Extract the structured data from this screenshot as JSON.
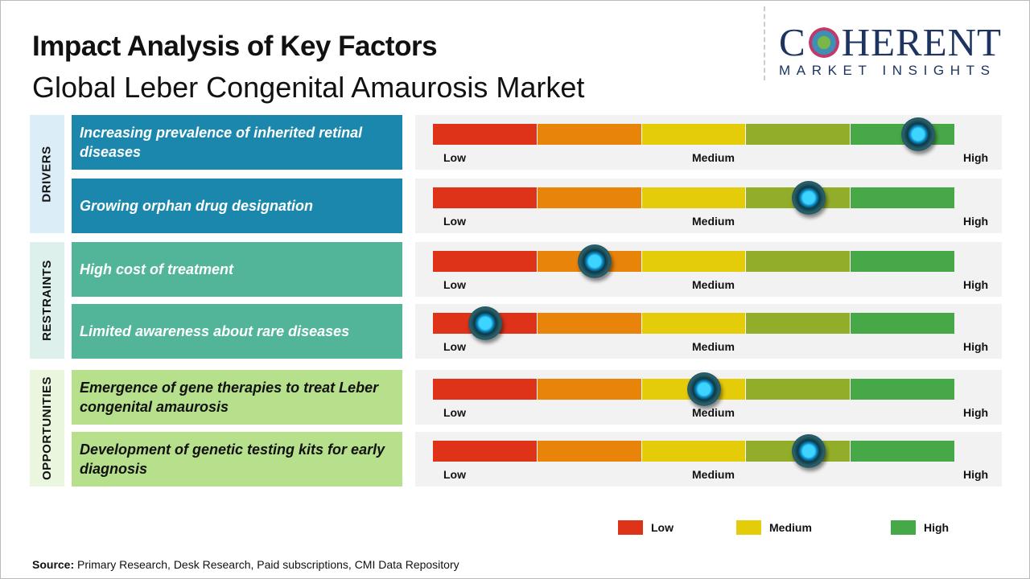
{
  "header": {
    "title": "Impact Analysis of Key Factors",
    "subtitle": "Global Leber Congenital Amaurosis Market"
  },
  "logo": {
    "main_left": "C",
    "main_right": "HERENT",
    "sub": "MARKET INSIGHTS"
  },
  "colors": {
    "drivers_bg": "#dbeef8",
    "drivers_box": "#1b87ad",
    "restraints_bg": "#ddf0ec",
    "restraints_box": "#52b59a",
    "opportunities_bg": "#eaf6de",
    "opportunities_box": "#b6e08c",
    "scale": [
      "#de3219",
      "#e8840a",
      "#e5cc0a",
      "#92ad2a",
      "#46a846"
    ]
  },
  "categories": [
    {
      "label": "DRIVERS"
    },
    {
      "label": "RESTRAINTS"
    },
    {
      "label": "OPPORTUNITIES"
    }
  ],
  "scale_labels": {
    "low": "Low",
    "medium": "Medium",
    "high": "High"
  },
  "chart_data": {
    "type": "gauge",
    "scale": [
      "Low",
      "Medium",
      "High"
    ],
    "range": [
      0,
      1
    ],
    "factors": [
      {
        "category": "DRIVERS",
        "label": "Increasing prevalence of inherited retinal diseases",
        "value": 0.93
      },
      {
        "category": "DRIVERS",
        "label": "Growing orphan drug designation",
        "value": 0.72
      },
      {
        "category": "RESTRAINTS",
        "label": "High cost of treatment",
        "value": 0.31
      },
      {
        "category": "RESTRAINTS",
        "label": "Limited awareness about rare diseases",
        "value": 0.1
      },
      {
        "category": "OPPORTUNITIES",
        "label": "Emergence of gene therapies to treat Leber congenital amaurosis",
        "value": 0.52
      },
      {
        "category": "OPPORTUNITIES",
        "label": "Development of genetic testing kits for early diagnosis",
        "value": 0.72
      }
    ],
    "legend": [
      {
        "label": "Low",
        "color": "#de3219"
      },
      {
        "label": "Medium",
        "color": "#e5cc0a"
      },
      {
        "label": "High",
        "color": "#46a846"
      }
    ]
  },
  "source": {
    "prefix": "Source:",
    "text": " Primary Research, Desk Research, Paid subscriptions, CMI Data Repository"
  }
}
